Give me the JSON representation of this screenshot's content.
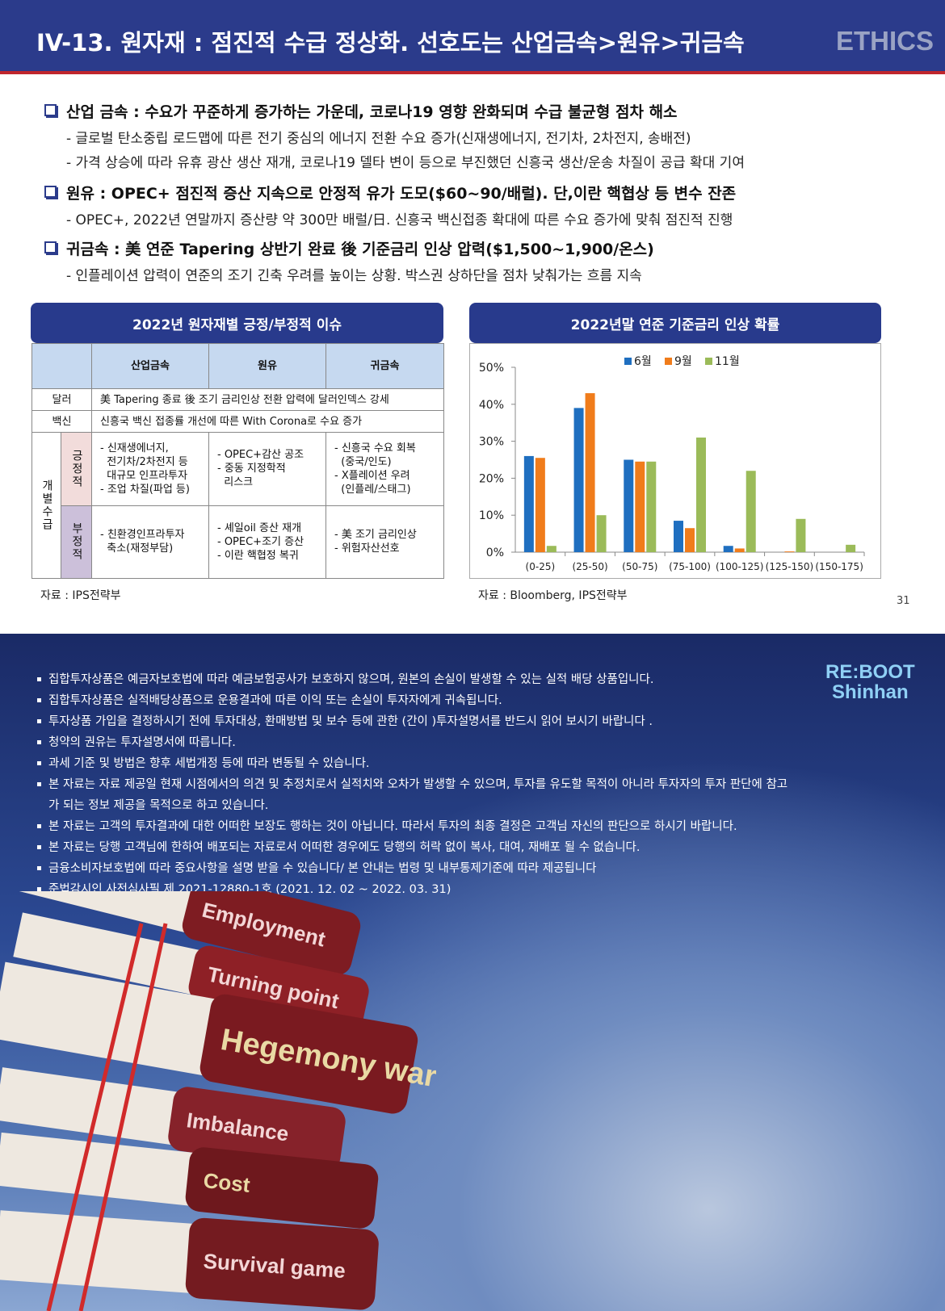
{
  "header": {
    "title": "IV-13. 원자재 : 점진적 수급 정상화. 선호도는 산업금속>원유>귀금속",
    "brand": "ETHICS"
  },
  "bullets": [
    {
      "heading": "산업 금속 : 수요가 꾸준하게 증가하는 가운데, 코로나19 영향 완화되며 수급 불균형 점차 해소",
      "items": [
        "- 글로벌 탄소중립 로드맵에 따른 전기 중심의 에너지 전환 수요 증가(신재생에너지, 전기차, 2차전지, 송배전)",
        "- 가격 상승에 따라 유휴 광산 생산 재개, 코로나19 델타 변이 등으로 부진했던 신흥국 생산/운송 차질이 공급 확대 기여"
      ]
    },
    {
      "heading": "원유 : OPEC+ 점진적 증산 지속으로 안정적 유가 도모($60~90/배럴). 단,이란 핵협상 등 변수 잔존",
      "items": [
        "- OPEC+, 2022년 연말까지 증산량 약 300만 배럴/日. 신흥국 백신접종 확대에 따른 수요 증가에 맞춰 점진적 진행"
      ]
    },
    {
      "heading": "귀금속 : 美 연준 Tapering 상반기 완료 後 기준금리 인상 압력($1,500~1,900/온스)",
      "items": [
        "- 인플레이션 압력이 연준의 조기 긴축 우려를 높이는 상황. 박스권 상하단을 점차 낮춰가는 흐름 지속"
      ]
    }
  ],
  "table": {
    "title": "2022년 원자재별 긍정/부정적 이슈",
    "columns": [
      "산업금속",
      "원유",
      "귀금속"
    ],
    "rows": [
      {
        "label": "달러",
        "text": "美 Tapering 종료 後 조기 금리인상 전환 압력에 달러인덱스 강세"
      },
      {
        "label": "백신",
        "text": "신흥국 백신 접종률 개선에 따른 With Corona로 수요 증가"
      }
    ],
    "group": {
      "label": "개별수급",
      "rows": [
        {
          "label": "긍정적",
          "cells": [
            [
              "- 신재생에너지,",
              "  전기차/2차전지 등",
              "  대규모 인프라투자",
              "- 조업 차질(파업 등)"
            ],
            [
              "- OPEC+감산 공조",
              "- 중동 지정학적",
              "  리스크"
            ],
            [
              "- 신흥국 수요 회복",
              "  (중국/인도)",
              "- X플레이션 우려",
              "  (인플레/스태그)"
            ]
          ]
        },
        {
          "label": "부정적",
          "cells": [
            [
              "- 친환경인프라투자",
              "  축소(재정부담)"
            ],
            [
              "- 셰일oil 증산 재개",
              "- OPEC+조기 증산",
              "- 이란 핵협정 복귀"
            ],
            [
              "- 美 조기 금리인상",
              "- 위험자산선호"
            ]
          ]
        }
      ]
    },
    "source": "자료 : IPS전략부"
  },
  "chart_data": {
    "type": "bar",
    "title": "2022년말 연준 기준금리 인상 확률",
    "categories": [
      "(0-25)",
      "(25-50)",
      "(50-75)",
      "(75-100)",
      "(100-125)",
      "(125-150)",
      "(150-175)"
    ],
    "series": [
      {
        "name": "6월",
        "color": "#1f6fc0",
        "values": [
          26,
          39,
          25,
          8.5,
          1.7,
          0,
          0
        ]
      },
      {
        "name": "9월",
        "color": "#f07c1b",
        "values": [
          25.5,
          43,
          24.5,
          6.5,
          1,
          0.2,
          0
        ]
      },
      {
        "name": "11월",
        "color": "#9bbb59",
        "values": [
          1.7,
          10,
          24.5,
          31,
          22,
          9,
          2
        ]
      }
    ],
    "ylim": [
      0,
      50
    ],
    "yticks": [
      {
        "value": 0,
        "label": "0%"
      },
      {
        "value": 10,
        "label": "10%"
      },
      {
        "value": 20,
        "label": "20%"
      },
      {
        "value": 30,
        "label": "30%"
      },
      {
        "value": 40,
        "label": "40%"
      },
      {
        "value": 50,
        "label": "50%"
      }
    ],
    "source": "자료 : Bloomberg, IPS전략부"
  },
  "page_number": "31",
  "disclaimer": {
    "items": [
      "집합투자상품은 예금자보호법에 따라 예금보험공사가 보호하지 않으며, 원본의 손실이 발생할 수 있는 실적 배당 상품입니다.",
      "집합투자상품은 실적배당상품으로 운용결과에 따른 이익 또는 손실이 투자자에게 귀속됩니다.",
      "투자상품 가입을 결정하시기 전에 투자대상, 환매방법 및 보수 등에 관한 (간이 )투자설명서를 반드시 읽어 보시기 바랍니다 .",
      "청약의 권유는 투자설명서에 따릅니다.",
      "과세 기준 및 방법은 향후 세법개정 등에 따라 변동될 수 있습니다.",
      "본 자료는 자료 제공일 현재 시점에서의 의견 및 추정치로서 실적치와 오차가 발생할 수 있으며, 투자를 유도할 목적이 아니라 투자자의 투자 판단에 참고가 되는 정보 제공을 목적으로 하고 있습니다.",
      "본 자료는 고객의 투자결과에 대한 어떠한 보장도 행하는 것이 아닙니다. 따라서 투자의 최종 결정은 고객님 자신의 판단으로 하시기 바랍니다.",
      "본 자료는 당행 고객님에 한하여 배포되는 자료로서 어떠한 경우에도 당행의 허락 없이 복사, 대여, 재배포 될 수 없습니다.",
      "금융소비자보호법에 따라 중요사항을 설명 받을 수 있습니다/ 본 안내는 법령 및 내부통제기준에 따라 제공됩니다",
      "준법감시인 사전심사필 제 2021-12880-1호 (2021. 12. 02 ~ 2022. 03. 31)"
    ],
    "logo": [
      "RE:BOOT",
      "Shinhan"
    ]
  },
  "image": {
    "book_labels": [
      "Employment",
      "Turning point",
      "Hegemony war",
      "Imbalance",
      "Cost",
      "Survival game"
    ]
  }
}
